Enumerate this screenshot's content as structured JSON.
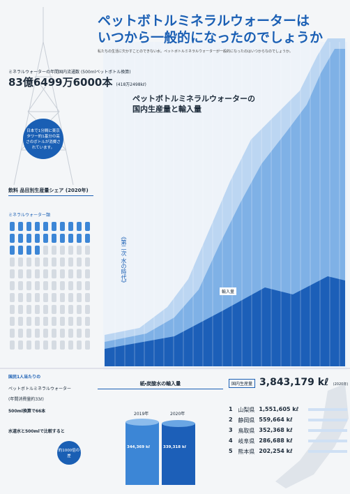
{
  "header": {
    "title_lines": [
      "ペットボトルミネラルウォーターは",
      "いつから一般的になったのでしょうか"
    ],
    "lead": "私たちの生活に欠かすことのできない水。ペットボトルミネラルウォーターが一般的になったのはいつからなのでしょうか。"
  },
  "circulation": {
    "label": "ミネラルウォーターの年間国内流通数",
    "note": "(500mlペットボトル換算)",
    "value": "83億6499万6000本",
    "sub": "(418万2498kℓ)"
  },
  "tower_note": "日本で1分間に東京タワー約1基分の高さのボトルが消費されています。",
  "share": {
    "title": "飲料 品目別生産量シェア",
    "year": "(2020年)",
    "legend": "ミネラルウォーター類"
  },
  "production_chart": {
    "title_lines": [
      "ペットボトルミネラルウォーターの",
      "国内生産量と輸入量"
    ],
    "era": "《第二次 水の時代》",
    "import_label": "輸入量"
  },
  "per_capita": {
    "title": "国民1人当たりの",
    "subject": "ペットボトルミネラルウォーター",
    "annual": "(年間消費量約33ℓ)",
    "bottles": "500ml換算で66本"
  },
  "tap": {
    "title": "水道水と500mlで比較すると",
    "badge": "約1000倍の差"
  },
  "imports": {
    "title": "紙・炭酸水の輸入量",
    "years": [
      "2019年",
      "2020年"
    ],
    "totals": [
      "344,369 kℓ",
      "339,318 kℓ"
    ]
  },
  "domestic": {
    "label": "国内生産量",
    "value": "3,843,179 kℓ",
    "year": "(2020年)",
    "ranking": [
      {
        "rank": "1",
        "pref": "山梨県",
        "amount": "1,551,605 kℓ"
      },
      {
        "rank": "2",
        "pref": "静岡県",
        "amount": "559,664 kℓ"
      },
      {
        "rank": "3",
        "pref": "鳥取県",
        "amount": "352,368 kℓ"
      },
      {
        "rank": "4",
        "pref": "岐阜県",
        "amount": "286,688 kℓ"
      },
      {
        "rank": "5",
        "pref": "熊本県",
        "amount": "202,254 kℓ"
      }
    ]
  }
}
